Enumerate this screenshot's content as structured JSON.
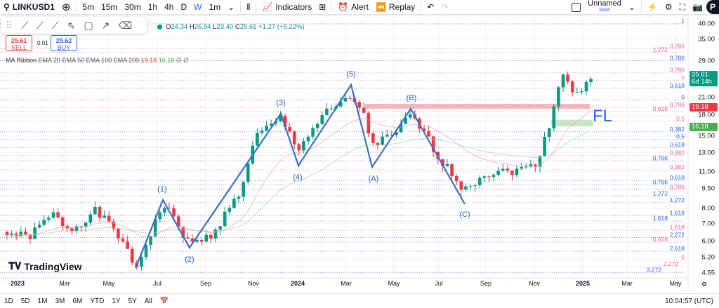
{
  "toolbar": {
    "symbol": "LINKUSD1",
    "intervals": [
      "5m",
      "15m",
      "30m",
      "1h",
      "4h",
      "D",
      "W",
      "1m"
    ],
    "active_interval": "W",
    "indicators": "Indicators",
    "alert": "Alert",
    "replay": "Replay",
    "layout_name": "Unnamed",
    "layout_save": "Save",
    "avatar": "P"
  },
  "ohlc": {
    "o_label": "O",
    "o": "24.34",
    "h_label": "H",
    "h": "26.94",
    "l_label": "L",
    "l": "23.40",
    "c_label": "C",
    "c": "25.61",
    "change": "+1.27 (+5.22%)"
  },
  "trade": {
    "sell_price": "25.61",
    "sell_label": "SELL",
    "spread": "0.01",
    "buy_price": "25.62",
    "buy_label": "BUY"
  },
  "indicator": {
    "name": "MA Ribbon",
    "params": "EMA 20 EMA 50 EMA 100 EMA 200",
    "v1": "19.18",
    "v2": "16.18",
    "v3": "∅",
    "v4": "∅"
  },
  "price_axis": [
    "40.00",
    "35.00",
    "29.00",
    "21.00",
    "18.00",
    "15.00",
    "13.00",
    "11.00",
    "9.50",
    "8.00",
    "7.00",
    "6.00",
    "5.20",
    "4.55"
  ],
  "badges": {
    "last_price": "25.61",
    "countdown": "6d 14h",
    "ema20": "19.18",
    "ema50": "16.18"
  },
  "time_axis": [
    "2023",
    "Mar",
    "May",
    "Jul",
    "Sep",
    "Nov",
    "2024",
    "Mar",
    "May",
    "Jul",
    "Sep",
    "Nov",
    "2025",
    "Mar",
    "May"
  ],
  "waves": [
    "(1)",
    "(2)",
    "(3)",
    "(4)",
    "(5)",
    "(A)",
    "(B)",
    "(C)"
  ],
  "annotation": "FL",
  "fib_levels": [
    {
      "label": "1",
      "price": 40,
      "color": "#2962ff"
    },
    {
      "label": "0.786",
      "price": 32.2,
      "color": "#f06292"
    },
    {
      "label": "1.272",
      "price": 31.2,
      "color": "#f06292"
    },
    {
      "label": "0.786",
      "price": 29,
      "color": "#2962ff"
    },
    {
      "label": "0.786",
      "price": 26.1,
      "color": "#f06292"
    },
    {
      "label": "0",
      "price": 24.4,
      "color": "#f06292"
    },
    {
      "label": "0.618",
      "price": 22.8,
      "color": "#2962ff"
    },
    {
      "label": "0",
      "price": 20.6,
      "color": "#2962ff"
    },
    {
      "label": "0.786",
      "price": 19.3,
      "color": "#f06292"
    },
    {
      "label": "0.618",
      "price": 18.6,
      "color": "#f06292"
    },
    {
      "label": "0.5",
      "price": 17.1,
      "color": "#f06292"
    },
    {
      "label": "0.382",
      "price": 15.6,
      "color": "#2962ff"
    },
    {
      "label": "0.5",
      "price": 14.6,
      "color": "#2962ff"
    },
    {
      "label": "0.618",
      "price": 13.6,
      "color": "#2962ff"
    },
    {
      "label": "0.382",
      "price": 12.7,
      "color": "#f06292"
    },
    {
      "label": "0.786",
      "price": 12.1,
      "color": "#2962ff"
    },
    {
      "label": "0.382",
      "price": 11.2,
      "color": "#f06292"
    },
    {
      "label": "0.618",
      "price": 10.2,
      "color": "#2962ff"
    },
    {
      "label": "0.786",
      "price": 9.8,
      "color": "#2962ff"
    },
    {
      "label": "0.786",
      "price": 9.4,
      "color": "#f06292"
    },
    {
      "label": "1.272",
      "price": 8.9,
      "color": "#2962ff"
    },
    {
      "label": "1.272",
      "price": 8.4,
      "color": "#2962ff"
    },
    {
      "label": "1.618",
      "price": 7.5,
      "color": "#2962ff"
    },
    {
      "label": "1.618",
      "price": 7.15,
      "color": "#2962ff"
    },
    {
      "label": "1.618",
      "price": 6.6,
      "color": "#f06292"
    },
    {
      "label": "2.272",
      "price": 6.2,
      "color": "#2962ff"
    },
    {
      "label": "0.618",
      "price": 5.95,
      "color": "#f06292"
    },
    {
      "label": "2.618",
      "price": 5.5,
      "color": "#2962ff"
    },
    {
      "label": "0",
      "price": 5.1,
      "color": "#f06292"
    },
    {
      "label": "2.272",
      "price": 4.8,
      "color": "#f06292"
    },
    {
      "label": "3.272",
      "price": 4.57,
      "color": "#2962ff"
    }
  ],
  "logo": "TradingView",
  "bottom": {
    "ranges": [
      "1D",
      "5D",
      "1M",
      "3M",
      "6M",
      "YTD",
      "1Y",
      "5Y",
      "All"
    ],
    "clock": "10:04:57 (UTC)"
  }
}
